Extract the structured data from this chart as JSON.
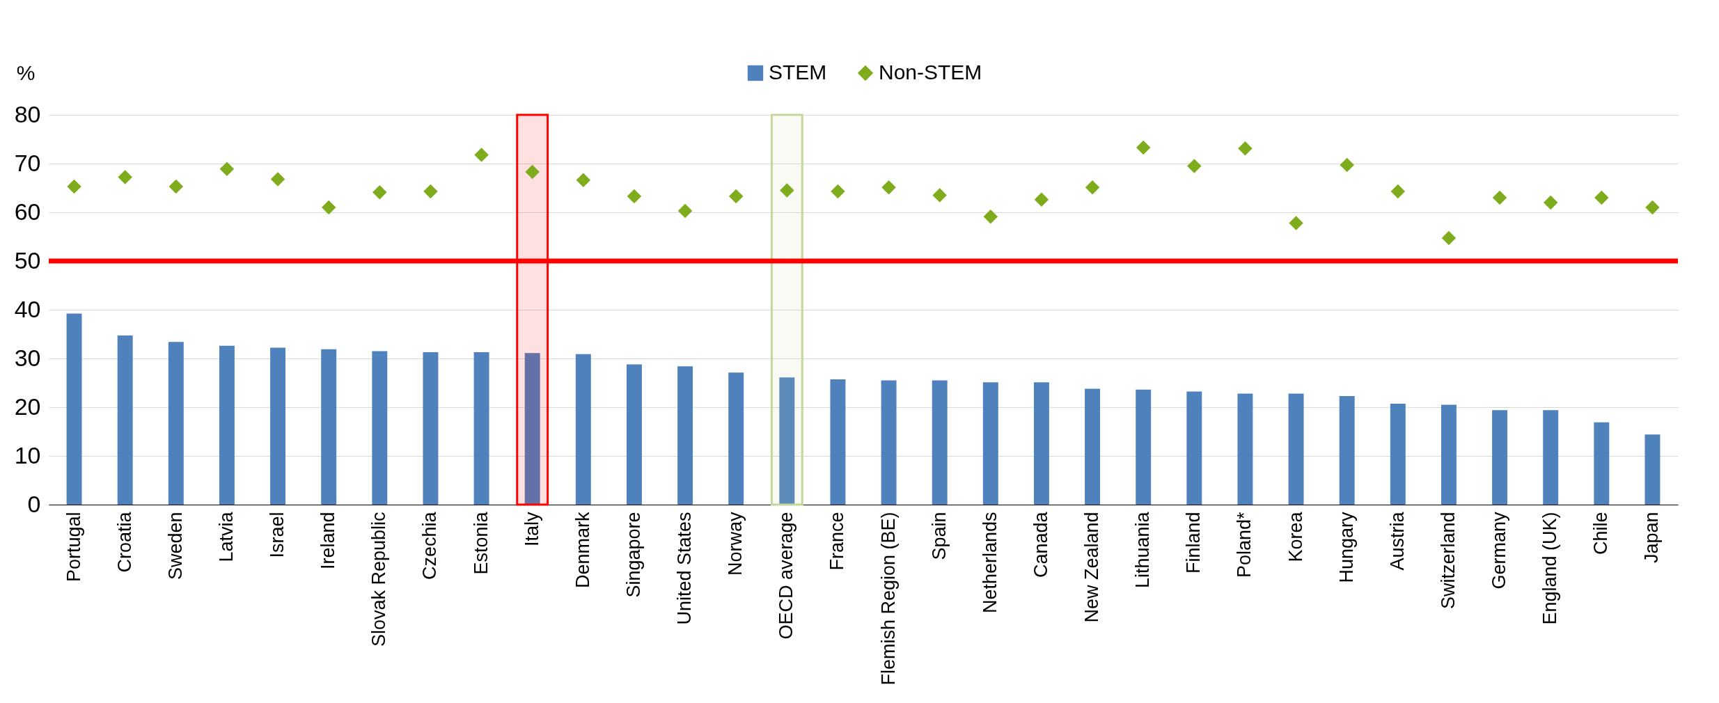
{
  "chart_data": {
    "type": "bar",
    "ylabel": "%",
    "categories": [
      "Portugal",
      "Croatia",
      "Sweden",
      "Latvia",
      "Israel",
      "Ireland",
      "Slovak Republic",
      "Czechia",
      "Estonia",
      "Italy",
      "Denmark",
      "Singapore",
      "United States",
      "Norway",
      "OECD average",
      "France",
      "Flemish Region (BE)",
      "Spain",
      "Netherlands",
      "Canada",
      "New Zealand",
      "Lithuania",
      "Finland",
      "Poland*",
      "Korea",
      "Hungary",
      "Austria",
      "Switzerland",
      "Germany",
      "England (UK)",
      "Chile",
      "Japan"
    ],
    "series": [
      {
        "name": "STEM",
        "color": "#4f81bd",
        "values": [
          39.2,
          34.7,
          33.4,
          32.6,
          32.2,
          31.9,
          31.5,
          31.3,
          31.3,
          31.1,
          30.9,
          28.8,
          28.4,
          27.1,
          26.1,
          25.7,
          25.5,
          25.5,
          25.1,
          25.1,
          23.8,
          23.6,
          23.2,
          22.8,
          22.8,
          22.3,
          20.7,
          20.5,
          19.4,
          19.4,
          16.9,
          14.4
        ]
      },
      {
        "name": "Non-STEM",
        "type": "scatter",
        "color": "#7fac1c",
        "values": [
          65.3,
          67.2,
          65.3,
          68.9,
          66.8,
          61.0,
          64.1,
          64.3,
          71.8,
          68.3,
          66.6,
          63.3,
          60.3,
          63.3,
          64.5,
          64.3,
          65.1,
          63.5,
          59.1,
          62.6,
          65.1,
          73.3,
          69.5,
          73.1,
          57.8,
          69.7,
          64.3,
          54.7,
          63.0,
          62.0,
          63.0,
          61.0
        ]
      }
    ],
    "ylim": [
      0,
      80
    ],
    "yticks": [
      0,
      10,
      20,
      30,
      40,
      50,
      60,
      70,
      80
    ],
    "grid": "y",
    "legend": "top",
    "marker": "diamond",
    "ref_lines": [
      {
        "axis": "y",
        "value": 50,
        "color": "#ff0000"
      }
    ],
    "bands": [
      {
        "axis": "x",
        "from": "Italy",
        "to": "Italy",
        "color": "#ff0000"
      },
      {
        "axis": "x",
        "from": "OECD average",
        "to": "OECD average",
        "color": "#c4d79b"
      }
    ]
  }
}
